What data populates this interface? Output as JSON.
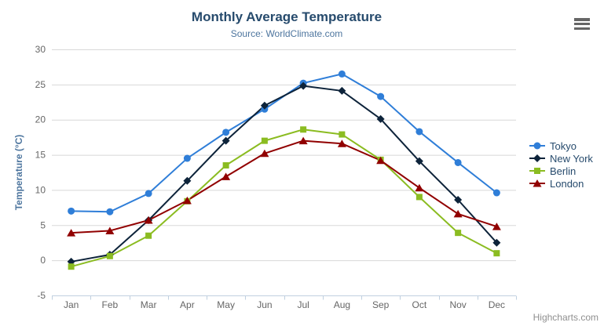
{
  "chart_data": {
    "type": "line",
    "title": "Monthly Average Temperature",
    "subtitle": "Source: WorldClimate.com",
    "categories": [
      "Jan",
      "Feb",
      "Mar",
      "Apr",
      "May",
      "Jun",
      "Jul",
      "Aug",
      "Sep",
      "Oct",
      "Nov",
      "Dec"
    ],
    "series": [
      {
        "name": "Tokyo",
        "color": "#2f7ed8",
        "marker": "circle",
        "values": [
          7.0,
          6.9,
          9.5,
          14.5,
          18.2,
          21.5,
          25.2,
          26.5,
          23.3,
          18.3,
          13.9,
          9.6
        ]
      },
      {
        "name": "New York",
        "color": "#0d233a",
        "marker": "diamond",
        "values": [
          -0.2,
          0.8,
          5.7,
          11.3,
          17.0,
          22.0,
          24.8,
          24.1,
          20.1,
          14.1,
          8.6,
          2.5
        ]
      },
      {
        "name": "Berlin",
        "color": "#8bbc21",
        "marker": "square",
        "values": [
          -0.9,
          0.6,
          3.5,
          8.4,
          13.5,
          17.0,
          18.6,
          17.9,
          14.3,
          9.0,
          3.9,
          1.0
        ]
      },
      {
        "name": "London",
        "color": "#910000",
        "marker": "triangle",
        "values": [
          3.9,
          4.2,
          5.7,
          8.5,
          11.9,
          15.2,
          17.0,
          16.6,
          14.2,
          10.3,
          6.6,
          4.8
        ]
      }
    ],
    "xlabel": "",
    "ylabel": "Temperature (°C)",
    "ylim": [
      -5,
      30
    ],
    "yticks": [
      -5,
      0,
      5,
      10,
      15,
      20,
      25,
      30
    ],
    "legend_position": "right",
    "grid": true
  },
  "credits": {
    "label": "Highcharts.com"
  },
  "export_menu": {
    "icon_name": "hamburger-icon"
  },
  "colors": {
    "title": "#274b6d",
    "subtitle": "#4d759e",
    "axis_label": "#666666",
    "axis_title": "#4d759e",
    "grid_line": "#d8d8d8",
    "axis_line": "#c0d0e0",
    "legend_text": "#274b6d",
    "credits": "#8f8f8f",
    "background": "#ffffff",
    "hamburger": "#666666"
  }
}
